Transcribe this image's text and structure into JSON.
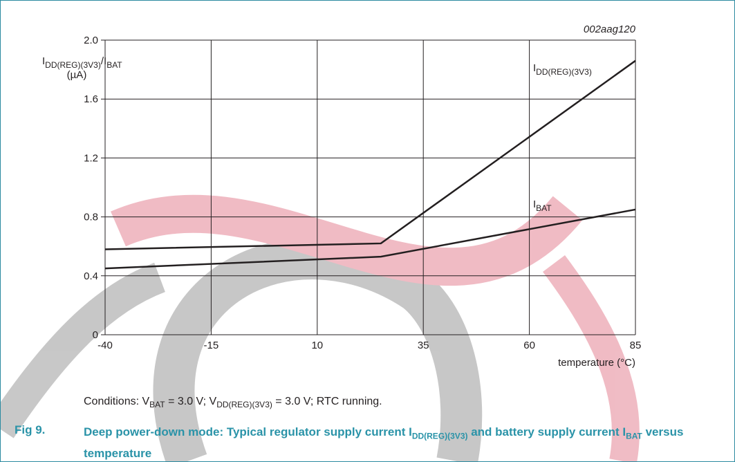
{
  "chart_data": {
    "type": "line",
    "code": "002aag120",
    "ylabel": [
      {
        "text": "I"
      },
      {
        "text": "DD(REG)(3V3)",
        "sub": true
      },
      {
        "text": "/I"
      },
      {
        "text": "BAT",
        "sub": true
      }
    ],
    "yunit": "(µA)",
    "xlabel": "temperature (°C)",
    "x": [
      -40,
      25,
      85
    ],
    "series": [
      {
        "name": [
          {
            "text": "I"
          },
          {
            "text": "DD(REG)(3V3)",
            "sub": true
          }
        ],
        "color": "#231f20",
        "values": [
          0.58,
          0.62,
          1.86
        ]
      },
      {
        "name": [
          {
            "text": "I"
          },
          {
            "text": "BAT",
            "sub": true
          }
        ],
        "color": "#231f20",
        "values": [
          0.45,
          0.53,
          0.85
        ]
      }
    ],
    "xlim": [
      -40,
      85
    ],
    "xticks": [
      -40,
      -15,
      10,
      35,
      60,
      85
    ],
    "ylim": [
      0,
      2
    ],
    "yticks": [
      0,
      0.4,
      0.8,
      1.2,
      {
        "value": 1.6,
        "label": "1.6"
      },
      {
        "value": 2,
        "label": "2.0"
      }
    ],
    "grid": true,
    "conditions": [
      {
        "text": "Conditions: V"
      },
      {
        "text": "BAT",
        "sub": true
      },
      {
        "text": " = 3.0 V; V"
      },
      {
        "text": "DD(REG)(3V3)",
        "sub": true
      },
      {
        "text": " = 3.0 V; RTC running."
      }
    ],
    "figure_number": "Fig 9.",
    "caption": [
      {
        "text": "Deep power-down mode: Typical regulator supply current I"
      },
      {
        "text": "DD(REG)(3V3)",
        "sub": true
      },
      {
        "text": " and battery supply current I"
      },
      {
        "text": "BAT",
        "sub": true
      },
      {
        "text": " versus temperature"
      }
    ]
  }
}
